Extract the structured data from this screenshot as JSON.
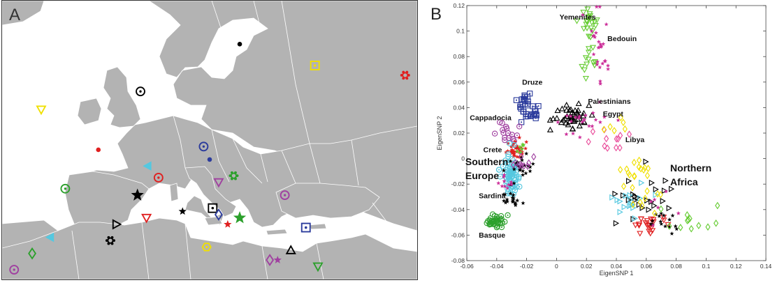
{
  "panels": {
    "a_label": "A",
    "b_label": "B"
  },
  "colors": {
    "land": "#b3b3b3",
    "sea": "#ffffff",
    "border": "#ffffff",
    "black": "#000000",
    "red": "#e02020",
    "green": "#2ca02c",
    "lime": "#66cc33",
    "blue": "#2b3b9c",
    "magenta": "#cc2e99",
    "purple": "#a040a0",
    "cyan": "#55c8e0",
    "yellow": "#f0e000",
    "pink": "#e94c9a"
  },
  "map_markers": [
    {
      "shape": "dot",
      "color": "black",
      "lon": 25.5,
      "lat": 63.3
    },
    {
      "shape": "ring",
      "color": "black",
      "lon": 9.0,
      "lat": 56.0
    },
    {
      "shape": "square",
      "color": "yellow",
      "lon": 38.0,
      "lat": 60.0
    },
    {
      "shape": "gear",
      "color": "red",
      "lon": 53.0,
      "lat": 58.5
    },
    {
      "shape": "triangle-down",
      "color": "yellow",
      "lon": -7.5,
      "lat": 53.2
    },
    {
      "shape": "dot",
      "color": "red",
      "lon": 2.0,
      "lat": 47.0
    },
    {
      "shape": "ring",
      "color": "blue",
      "lon": 19.5,
      "lat": 47.5
    },
    {
      "shape": "dot",
      "color": "blue",
      "lon": 20.5,
      "lat": 45.5
    },
    {
      "shape": "triangle-left",
      "color": "cyan",
      "lon": 10.2,
      "lat": 44.5
    },
    {
      "shape": "ring",
      "color": "red",
      "lon": 12.0,
      "lat": 42.7
    },
    {
      "shape": "ring",
      "color": "green",
      "lon": -3.5,
      "lat": 41.0
    },
    {
      "shape": "star",
      "color": "black",
      "lon": 8.5,
      "lat": 40.0
    },
    {
      "shape": "triangle-down",
      "color": "purple",
      "lon": 22.0,
      "lat": 42.0
    },
    {
      "shape": "gear",
      "color": "green",
      "lon": 24.5,
      "lat": 43.0
    },
    {
      "shape": "ring",
      "color": "purple",
      "lon": 33.0,
      "lat": 40.0
    },
    {
      "shape": "triangle-right",
      "color": "black",
      "lon": 5.0,
      "lat": 35.5
    },
    {
      "shape": "triangle-down",
      "color": "red",
      "lon": 10.0,
      "lat": 36.5
    },
    {
      "shape": "star-small",
      "color": "black",
      "lon": 16.0,
      "lat": 37.5
    },
    {
      "shape": "square",
      "color": "black",
      "lon": 21.0,
      "lat": 38.0
    },
    {
      "shape": "diamond",
      "color": "blue",
      "lon": 22.0,
      "lat": 37.0
    },
    {
      "shape": "star-small",
      "color": "red",
      "lon": 23.5,
      "lat": 35.5
    },
    {
      "shape": "star",
      "color": "green",
      "lon": 25.5,
      "lat": 36.5
    },
    {
      "shape": "triangle-left",
      "color": "cyan",
      "lon": -6.0,
      "lat": 33.5
    },
    {
      "shape": "gear",
      "color": "black",
      "lon": 4.0,
      "lat": 33.0
    },
    {
      "shape": "diamond",
      "color": "green",
      "lon": -9.0,
      "lat": 31.0
    },
    {
      "shape": "square",
      "color": "blue",
      "lon": 36.5,
      "lat": 35.0
    },
    {
      "shape": "hexagon",
      "color": "yellow",
      "lon": 20.0,
      "lat": 32.0
    },
    {
      "shape": "triangle-up",
      "color": "black",
      "lon": 34.0,
      "lat": 31.5
    },
    {
      "shape": "diamond",
      "color": "purple",
      "lon": 30.5,
      "lat": 30.0
    },
    {
      "shape": "star-small",
      "color": "purple",
      "lon": 31.8,
      "lat": 30.0
    },
    {
      "shape": "triangle-down",
      "color": "green",
      "lon": 38.5,
      "lat": 29.0
    },
    {
      "shape": "ring",
      "color": "purple",
      "lon": -12.0,
      "lat": 28.5
    }
  ],
  "chart_data": {
    "type": "scatter",
    "xlabel": "EigenSNP 1",
    "ylabel": "EigenSNP 2",
    "xlim": [
      -0.06,
      0.14
    ],
    "ylim": [
      -0.08,
      0.12
    ],
    "xticks": [
      -0.06,
      -0.04,
      -0.02,
      0,
      0.02,
      0.04,
      0.06,
      0.08,
      0.1,
      0.12,
      0.14
    ],
    "yticks": [
      -0.08,
      -0.06,
      -0.04,
      -0.02,
      0,
      0.02,
      0.04,
      0.06,
      0.08,
      0.1,
      0.12
    ],
    "xtick_labels": [
      "-0.06",
      "-0.04",
      "-0.02",
      "0",
      "0.02",
      "0.04",
      "0.06",
      "0.08",
      "0.1",
      "0.12",
      "0.14"
    ],
    "ytick_labels": [
      "-0.08",
      "-0.06",
      "-0.04",
      "-0.02",
      "0",
      "0.02",
      "0.04",
      "0.06",
      "0.08",
      "0.1",
      "0.12"
    ],
    "grid": false,
    "clusters": [
      {
        "label": "Yemenites",
        "marker": "triangle-down",
        "color": "lime",
        "x": 0.022,
        "y": 0.108,
        "sx": 0.003,
        "sy": 0.007,
        "n": 22,
        "seed": 1
      },
      {
        "label": "",
        "marker": "triangle-down",
        "color": "lime",
        "x": 0.022,
        "y": 0.078,
        "sx": 0.003,
        "sy": 0.006,
        "n": 12,
        "seed": 2
      },
      {
        "label": "Bedouin",
        "marker": "star-small",
        "color": "magenta",
        "x": 0.028,
        "y": 0.085,
        "sx": 0.004,
        "sy": 0.016,
        "n": 26,
        "seed": 3
      },
      {
        "label": "Druze",
        "marker": "square",
        "color": "blue",
        "x": -0.018,
        "y": 0.038,
        "sx": 0.004,
        "sy": 0.006,
        "n": 34,
        "seed": 4
      },
      {
        "label": "Palestinians",
        "marker": "triangle-up",
        "color": "black",
        "x": 0.012,
        "y": 0.032,
        "sx": 0.007,
        "sy": 0.005,
        "n": 44,
        "seed": 5
      },
      {
        "label": "",
        "marker": "star-small",
        "color": "magenta",
        "x": 0.018,
        "y": 0.03,
        "sx": 0.007,
        "sy": 0.005,
        "n": 22,
        "seed": 6
      },
      {
        "label": "Egypt",
        "marker": "diamond",
        "color": "pink",
        "x": 0.035,
        "y": 0.018,
        "sx": 0.006,
        "sy": 0.006,
        "n": 12,
        "seed": 7
      },
      {
        "label": "",
        "marker": "diamond",
        "color": "yellow",
        "x": 0.04,
        "y": 0.028,
        "sx": 0.005,
        "sy": 0.005,
        "n": 6,
        "seed": 8
      },
      {
        "label": "Libya",
        "marker": "diamond",
        "color": "yellow",
        "x": 0.052,
        "y": -0.01,
        "sx": 0.007,
        "sy": 0.006,
        "n": 16,
        "seed": 9
      },
      {
        "label": "Cappadocia",
        "marker": "ring",
        "color": "purple",
        "x": -0.032,
        "y": 0.02,
        "sx": 0.004,
        "sy": 0.004,
        "n": 16,
        "seed": 10
      },
      {
        "label": "Crete",
        "marker": "star-small",
        "color": "red",
        "x": -0.027,
        "y": 0.007,
        "sx": 0.003,
        "sy": 0.004,
        "n": 38,
        "seed": 11
      },
      {
        "label": "",
        "marker": "star-small",
        "color": "lime",
        "x": -0.024,
        "y": 0.009,
        "sx": 0.002,
        "sy": 0.003,
        "n": 8,
        "seed": 12
      },
      {
        "label": "Southern Europe",
        "marker": "ring",
        "color": "cyan",
        "x": -0.031,
        "y": -0.013,
        "sx": 0.003,
        "sy": 0.007,
        "n": 70,
        "seed": 13
      },
      {
        "label": "",
        "marker": "star-small",
        "color": "black",
        "x": -0.024,
        "y": -0.007,
        "sx": 0.004,
        "sy": 0.006,
        "n": 24,
        "seed": 14
      },
      {
        "label": "",
        "marker": "diamond",
        "color": "purple",
        "x": -0.024,
        "y": -0.006,
        "sx": 0.003,
        "sy": 0.004,
        "n": 10,
        "seed": 15
      },
      {
        "label": "",
        "marker": "star-small",
        "color": "magenta",
        "x": -0.034,
        "y": -0.02,
        "sx": 0.003,
        "sy": 0.004,
        "n": 10,
        "seed": 16
      },
      {
        "label": "Sardina",
        "marker": "star-small",
        "color": "black",
        "x": -0.03,
        "y": -0.032,
        "sx": 0.003,
        "sy": 0.003,
        "n": 18,
        "seed": 17
      },
      {
        "label": "Basque",
        "marker": "ring",
        "color": "green",
        "x": -0.041,
        "y": -0.05,
        "sx": 0.003,
        "sy": 0.003,
        "n": 34,
        "seed": 18
      },
      {
        "label": "Northern Africa",
        "marker": "triangle-right",
        "color": "black",
        "x": 0.058,
        "y": -0.03,
        "sx": 0.013,
        "sy": 0.01,
        "n": 24,
        "seed": 19
      },
      {
        "label": "",
        "marker": "triangle-right",
        "color": "cyan",
        "x": 0.048,
        "y": -0.032,
        "sx": 0.006,
        "sy": 0.006,
        "n": 16,
        "seed": 20
      },
      {
        "label": "",
        "marker": "triangle-down",
        "color": "red",
        "x": 0.062,
        "y": -0.052,
        "sx": 0.005,
        "sy": 0.004,
        "n": 22,
        "seed": 21
      },
      {
        "label": "",
        "marker": "star-small",
        "color": "black",
        "x": 0.068,
        "y": -0.052,
        "sx": 0.006,
        "sy": 0.004,
        "n": 16,
        "seed": 22
      },
      {
        "label": "",
        "marker": "diamond",
        "color": "lime",
        "x": 0.092,
        "y": -0.048,
        "sx": 0.015,
        "sy": 0.006,
        "n": 12,
        "seed": 23
      },
      {
        "label": "",
        "marker": "diamond",
        "color": "yellow",
        "x": 0.062,
        "y": -0.028,
        "sx": 0.006,
        "sy": 0.007,
        "n": 8,
        "seed": 24
      },
      {
        "label": "",
        "marker": "star-small",
        "color": "magenta",
        "x": 0.07,
        "y": -0.04,
        "sx": 0.006,
        "sy": 0.006,
        "n": 6,
        "seed": 25
      }
    ],
    "annotations": [
      {
        "text": "Yemenites",
        "x": 0.002,
        "y": 0.109,
        "size": "small"
      },
      {
        "text": "Bedouin",
        "x": 0.034,
        "y": 0.092,
        "size": "small"
      },
      {
        "text": "Druze",
        "x": -0.023,
        "y": 0.058,
        "size": "small"
      },
      {
        "text": "Palestinians",
        "x": 0.021,
        "y": 0.043,
        "size": "small"
      },
      {
        "text": "Egypt",
        "x": 0.031,
        "y": 0.033,
        "size": "small"
      },
      {
        "text": "Cappadocia",
        "x": -0.058,
        "y": 0.03,
        "size": "small"
      },
      {
        "text": "Libya",
        "x": 0.046,
        "y": 0.013,
        "size": "small"
      },
      {
        "text": "Crete",
        "x": -0.049,
        "y": 0.005,
        "size": "small"
      },
      {
        "text": "Southern",
        "x": -0.061,
        "y": -0.005,
        "size": "large"
      },
      {
        "text": "Europe",
        "x": -0.061,
        "y": -0.016,
        "size": "large"
      },
      {
        "text": "Northern",
        "x": 0.076,
        "y": -0.01,
        "size": "large"
      },
      {
        "text": "Africa",
        "x": 0.076,
        "y": -0.021,
        "size": "large"
      },
      {
        "text": "Sardina",
        "x": -0.052,
        "y": -0.031,
        "size": "small"
      },
      {
        "text": "Basque",
        "x": -0.052,
        "y": -0.062,
        "size": "small"
      }
    ]
  }
}
